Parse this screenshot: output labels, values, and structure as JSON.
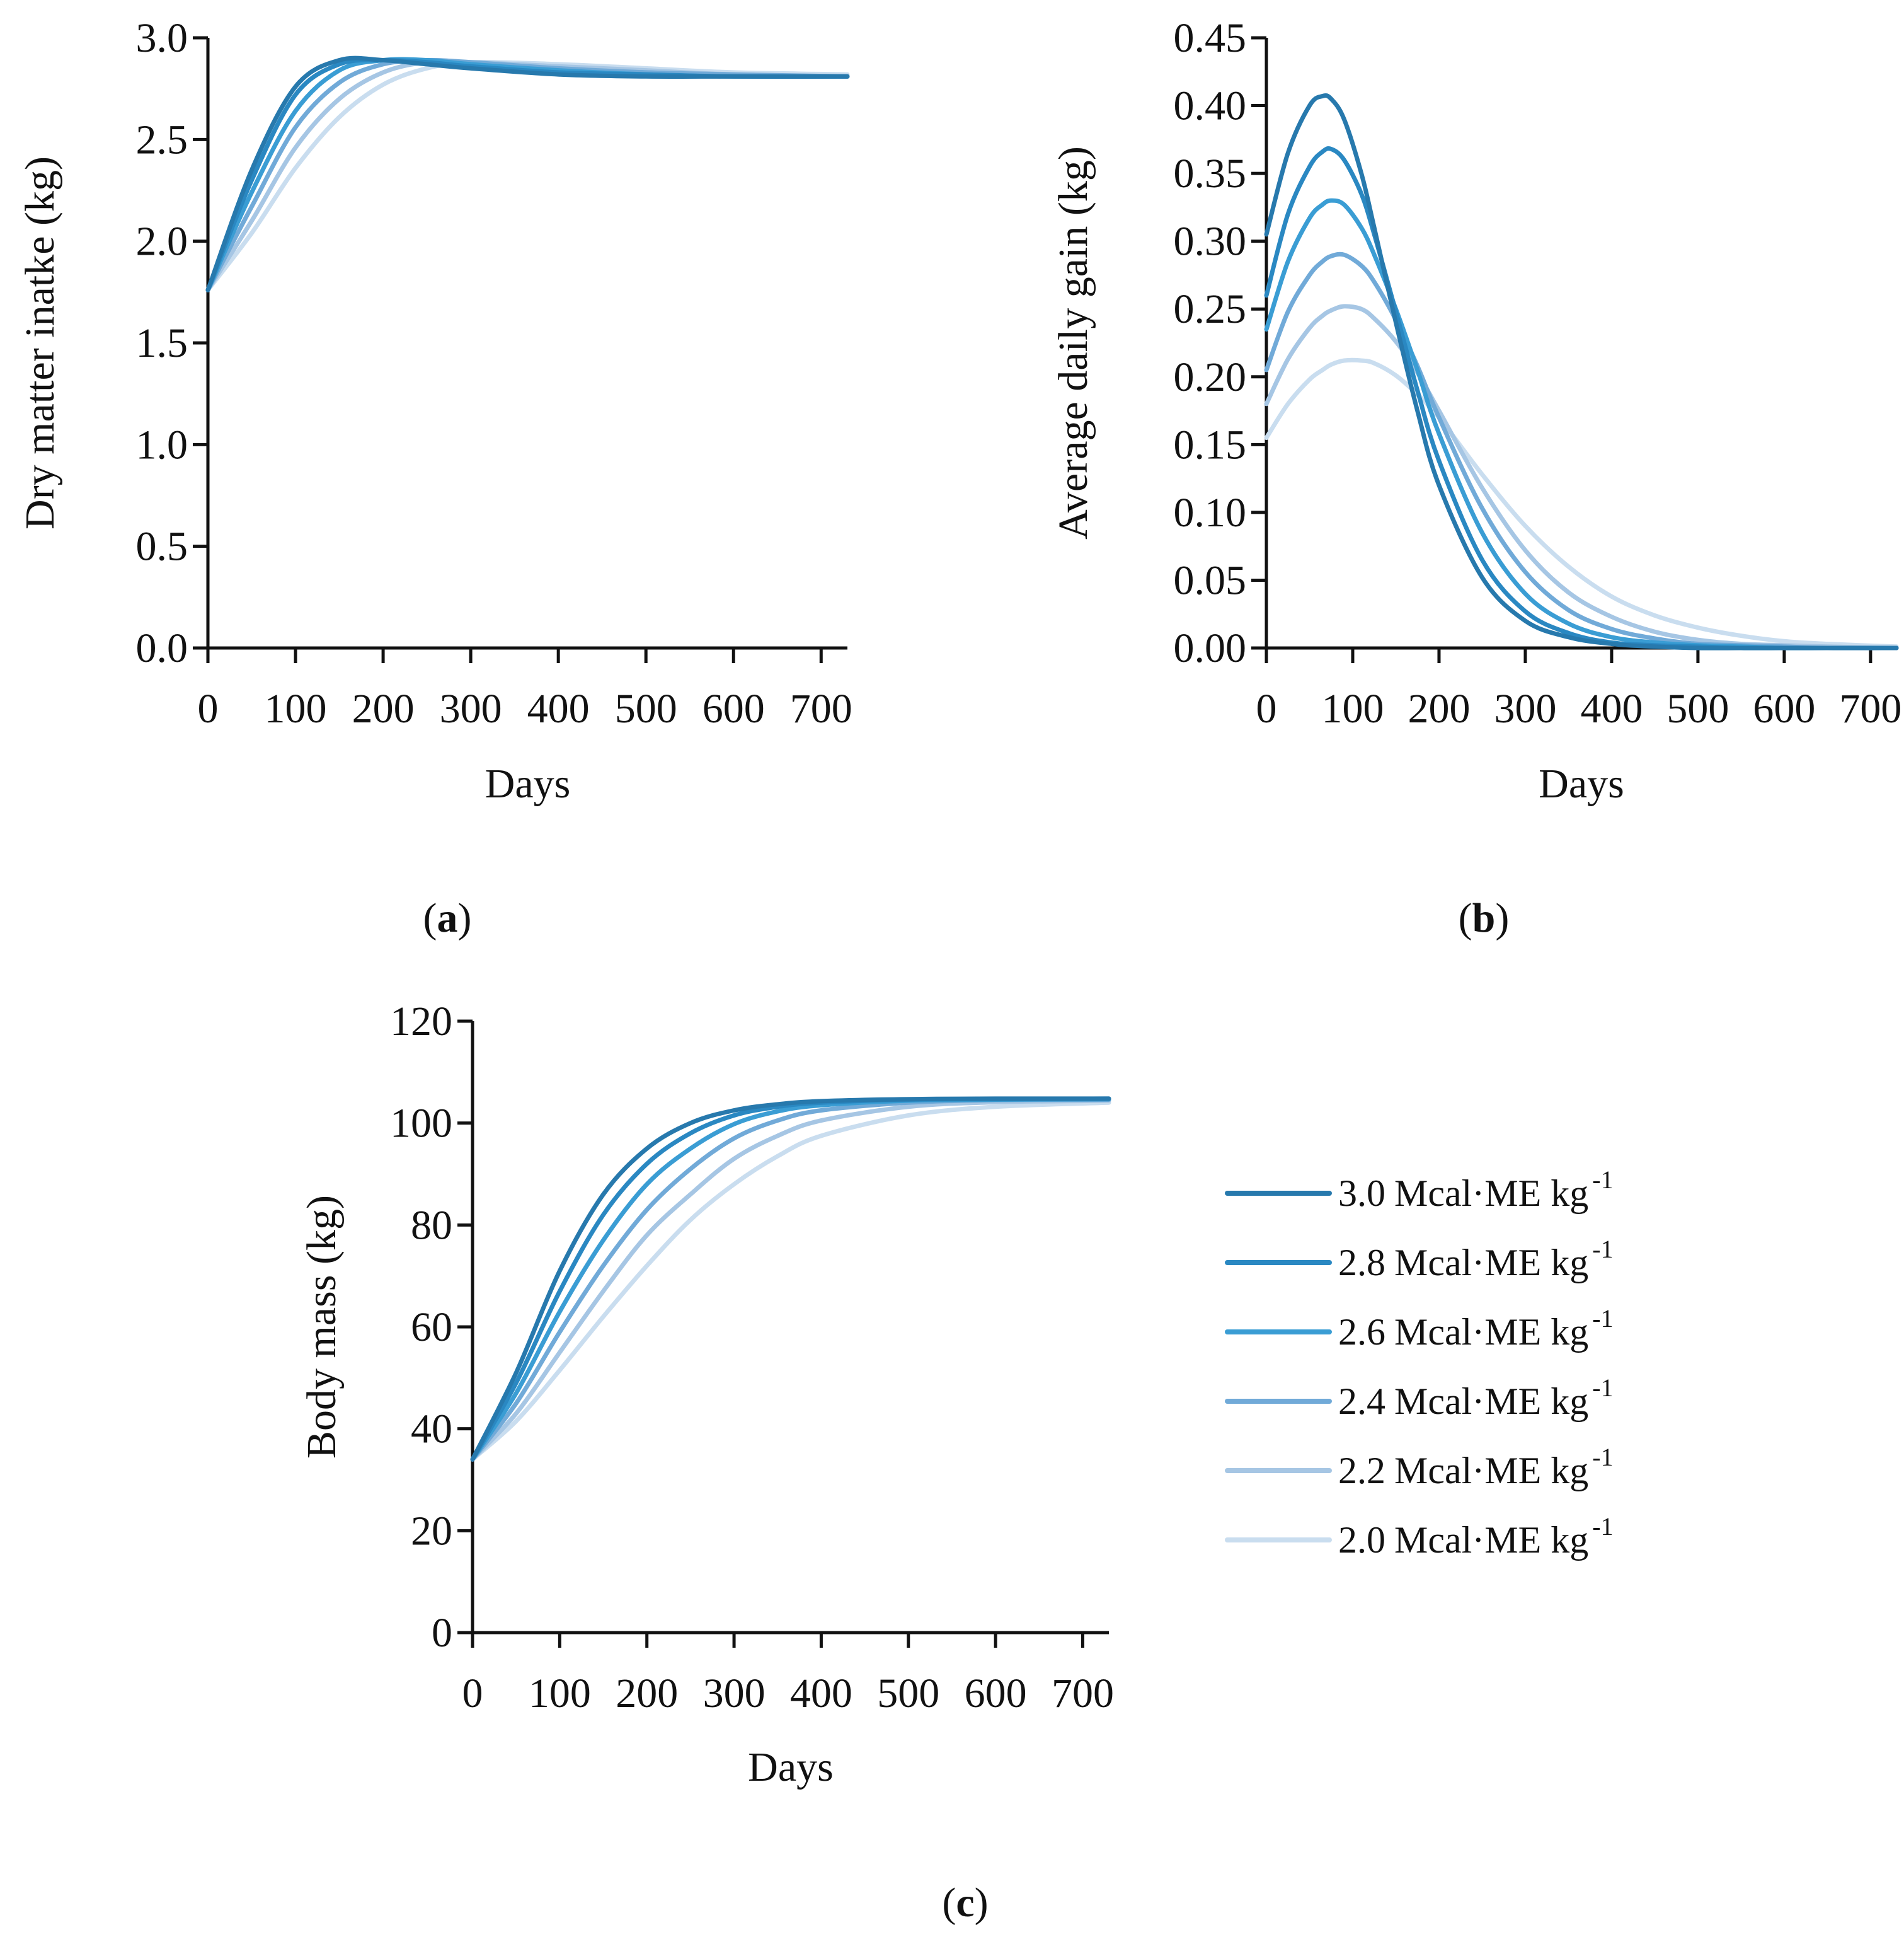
{
  "figure": {
    "colors": {
      "3.0": "#2779ad",
      "2.8": "#2a88c2",
      "2.6": "#3a9dd4",
      "2.4": "#71aad8",
      "2.2": "#a6c6e4",
      "2.0": "#c9ddef"
    },
    "legend": [
      {
        "value": "3.0",
        "unit": "Mcal·ME kg",
        "sup": "-1"
      },
      {
        "value": "2.8",
        "unit": "Mcal·ME kg",
        "sup": "-1"
      },
      {
        "value": "2.6",
        "unit": "Mcal·ME kg",
        "sup": "-1"
      },
      {
        "value": "2.4",
        "unit": "Mcal·ME kg",
        "sup": "-1"
      },
      {
        "value": "2.2",
        "unit": "Mcal·ME kg",
        "sup": "-1"
      },
      {
        "value": "2.0",
        "unit": "Mcal·ME kg",
        "sup": "-1"
      }
    ]
  },
  "chart_data": [
    {
      "id": "a",
      "panel_label": "a",
      "type": "line",
      "title": "",
      "xlabel": "Days",
      "ylabel": "Dry matter inatke (kg)",
      "xlim": [
        0,
        730
      ],
      "ylim": [
        0,
        3.0
      ],
      "xticks": [
        "0",
        "100",
        "200",
        "300",
        "400",
        "500",
        "600",
        "700"
      ],
      "yticks": [
        "0.0",
        "0.5",
        "1.0",
        "1.5",
        "2.0",
        "2.5",
        "3.0"
      ],
      "x": [
        0,
        50,
        100,
        150,
        200,
        250,
        300,
        400,
        500,
        600,
        730
      ],
      "series": [
        {
          "name": "3.0 Mcal·ME kg-1",
          "key": "3.0",
          "values": [
            1.76,
            2.35,
            2.76,
            2.89,
            2.89,
            2.87,
            2.85,
            2.82,
            2.81,
            2.81,
            2.81
          ]
        },
        {
          "name": "2.8 Mcal·ME kg-1",
          "key": "2.8",
          "values": [
            1.76,
            2.3,
            2.72,
            2.87,
            2.89,
            2.88,
            2.86,
            2.83,
            2.82,
            2.81,
            2.81
          ]
        },
        {
          "name": "2.6 Mcal·ME kg-1",
          "key": "2.6",
          "values": [
            1.76,
            2.24,
            2.64,
            2.84,
            2.89,
            2.89,
            2.87,
            2.84,
            2.82,
            2.81,
            2.81
          ]
        },
        {
          "name": "2.4 Mcal·ME kg-1",
          "key": "2.4",
          "values": [
            1.76,
            2.17,
            2.56,
            2.78,
            2.87,
            2.89,
            2.88,
            2.85,
            2.83,
            2.82,
            2.81
          ]
        },
        {
          "name": "2.2 Mcal·ME kg-1",
          "key": "2.2",
          "values": [
            1.76,
            2.1,
            2.46,
            2.7,
            2.83,
            2.88,
            2.88,
            2.86,
            2.84,
            2.82,
            2.81
          ]
        },
        {
          "name": "2.0 Mcal·ME kg-1",
          "key": "2.0",
          "values": [
            1.76,
            2.04,
            2.36,
            2.61,
            2.77,
            2.85,
            2.88,
            2.87,
            2.85,
            2.83,
            2.82
          ]
        }
      ]
    },
    {
      "id": "b",
      "panel_label": "b",
      "type": "line",
      "title": "",
      "xlabel": "Days",
      "ylabel": "Average daily gain (kg)",
      "xlim": [
        0,
        730
      ],
      "ylim": [
        0,
        0.45
      ],
      "xticks": [
        "0",
        "100",
        "200",
        "300",
        "400",
        "500",
        "600",
        "700"
      ],
      "yticks": [
        "0.00",
        "0.05",
        "0.10",
        "0.15",
        "0.20",
        "0.25",
        "0.30",
        "0.35",
        "0.40",
        "0.45"
      ],
      "x": [
        0,
        25,
        50,
        65,
        75,
        90,
        110,
        125,
        150,
        175,
        200,
        250,
        300,
        350,
        400,
        450,
        500,
        550,
        600,
        650,
        730
      ],
      "series": [
        {
          "name": "3.0 Mcal·ME kg-1",
          "key": "3.0",
          "values": [
            0.305,
            0.365,
            0.4,
            0.407,
            0.405,
            0.39,
            0.35,
            0.31,
            0.24,
            0.175,
            0.12,
            0.052,
            0.02,
            0.008,
            0.003,
            0.001,
            0.0,
            0.0,
            0.0,
            0.0,
            0.0
          ]
        },
        {
          "name": "2.8 Mcal·ME kg-1",
          "key": "2.8",
          "values": [
            0.26,
            0.32,
            0.355,
            0.366,
            0.368,
            0.36,
            0.335,
            0.305,
            0.248,
            0.19,
            0.138,
            0.065,
            0.027,
            0.011,
            0.004,
            0.002,
            0.001,
            0.0,
            0.0,
            0.0,
            0.0
          ]
        },
        {
          "name": "2.6 Mcal·ME kg-1",
          "key": "2.6",
          "values": [
            0.235,
            0.285,
            0.317,
            0.327,
            0.33,
            0.327,
            0.31,
            0.29,
            0.25,
            0.205,
            0.158,
            0.085,
            0.04,
            0.018,
            0.008,
            0.004,
            0.002,
            0.001,
            0.0,
            0.0,
            0.0
          ]
        },
        {
          "name": "2.4 Mcal·ME kg-1",
          "key": "2.4",
          "values": [
            0.205,
            0.248,
            0.275,
            0.285,
            0.289,
            0.29,
            0.282,
            0.27,
            0.242,
            0.208,
            0.17,
            0.103,
            0.056,
            0.028,
            0.014,
            0.007,
            0.003,
            0.002,
            0.001,
            0.0,
            0.0
          ]
        },
        {
          "name": "2.2 Mcal·ME kg-1",
          "key": "2.2",
          "values": [
            0.18,
            0.213,
            0.236,
            0.245,
            0.249,
            0.252,
            0.25,
            0.243,
            0.226,
            0.203,
            0.175,
            0.118,
            0.072,
            0.041,
            0.023,
            0.012,
            0.006,
            0.003,
            0.002,
            0.001,
            0.0
          ]
        },
        {
          "name": "2.0 Mcal·ME kg-1",
          "key": "2.0",
          "values": [
            0.155,
            0.18,
            0.198,
            0.205,
            0.209,
            0.212,
            0.212,
            0.21,
            0.201,
            0.187,
            0.17,
            0.128,
            0.09,
            0.06,
            0.038,
            0.024,
            0.015,
            0.009,
            0.005,
            0.003,
            0.001
          ]
        }
      ]
    },
    {
      "id": "c",
      "panel_label": "c",
      "type": "line",
      "title": "",
      "xlabel": "Days",
      "ylabel": "Body mass (kg)",
      "xlim": [
        0,
        730
      ],
      "ylim": [
        0,
        120
      ],
      "xticks": [
        "0",
        "100",
        "200",
        "300",
        "400",
        "500",
        "600",
        "700"
      ],
      "yticks": [
        "0",
        "20",
        "40",
        "60",
        "80",
        "100",
        "120"
      ],
      "x": [
        0,
        50,
        100,
        150,
        200,
        250,
        300,
        350,
        400,
        500,
        600,
        730
      ],
      "series": [
        {
          "name": "3.0 Mcal·ME kg-1",
          "key": "3.0",
          "values": [
            34,
            51,
            71,
            86,
            95,
            100,
            102.5,
            103.7,
            104.3,
            104.7,
            104.8,
            104.8
          ]
        },
        {
          "name": "2.8 Mcal·ME kg-1",
          "key": "2.8",
          "values": [
            34,
            49,
            67,
            82,
            92,
            98,
            101.5,
            103.2,
            104.0,
            104.6,
            104.7,
            104.8
          ]
        },
        {
          "name": "2.6 Mcal·ME kg-1",
          "key": "2.6",
          "values": [
            34,
            47,
            63,
            77,
            88,
            95,
            99.8,
            102.3,
            103.5,
            104.4,
            104.6,
            104.7
          ]
        },
        {
          "name": "2.4 Mcal·ME kg-1",
          "key": "2.4",
          "values": [
            34,
            45,
            59,
            72,
            83,
            91,
            97,
            100.5,
            102.5,
            104.0,
            104.5,
            104.6
          ]
        },
        {
          "name": "2.2 Mcal·ME kg-1",
          "key": "2.2",
          "values": [
            34,
            43,
            55,
            67,
            78,
            86,
            93,
            97.5,
            100.5,
            103.2,
            104.1,
            104.4
          ]
        },
        {
          "name": "2.0 Mcal·ME kg-1",
          "key": "2.0",
          "values": [
            34,
            41.5,
            51.5,
            62,
            72,
            81,
            88,
            93.5,
            97.5,
            101.5,
            103.2,
            104.0
          ]
        }
      ]
    }
  ]
}
